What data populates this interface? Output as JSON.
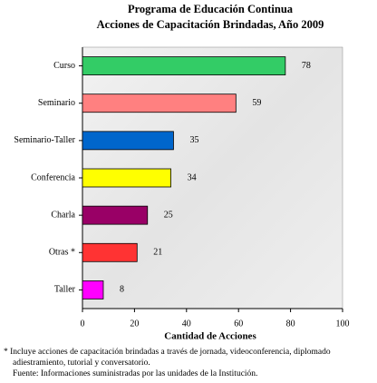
{
  "chart_data": {
    "type": "bar",
    "orientation": "horizontal",
    "title": "Programa de Educación Continua",
    "subtitle": "Acciones de Capacitación Brindadas, Año 2009",
    "x_label": "Cantidad de Acciones",
    "categories": [
      "Curso",
      "Seminario",
      "Seminario-Taller",
      "Conferencia",
      "Charla",
      "Otras *",
      "Taller"
    ],
    "values": [
      78,
      59,
      35,
      34,
      25,
      21,
      8
    ],
    "colors": [
      "#33cc66",
      "#ff8080",
      "#0066cc",
      "#ffff00",
      "#990066",
      "#ff3333",
      "#ff00ff"
    ],
    "xlim": [
      0,
      100
    ],
    "xticks": [
      0,
      20,
      40,
      60,
      80,
      100
    ],
    "grid": false,
    "notes": [
      "*  Incluye acciones de capacitación brindadas a través de jornada, videoconferencia, diplomado",
      "adiestramiento, tutorial y conversatorio.",
      "Fuente: Informaciones suministradas por las unidades de la Institución."
    ]
  }
}
